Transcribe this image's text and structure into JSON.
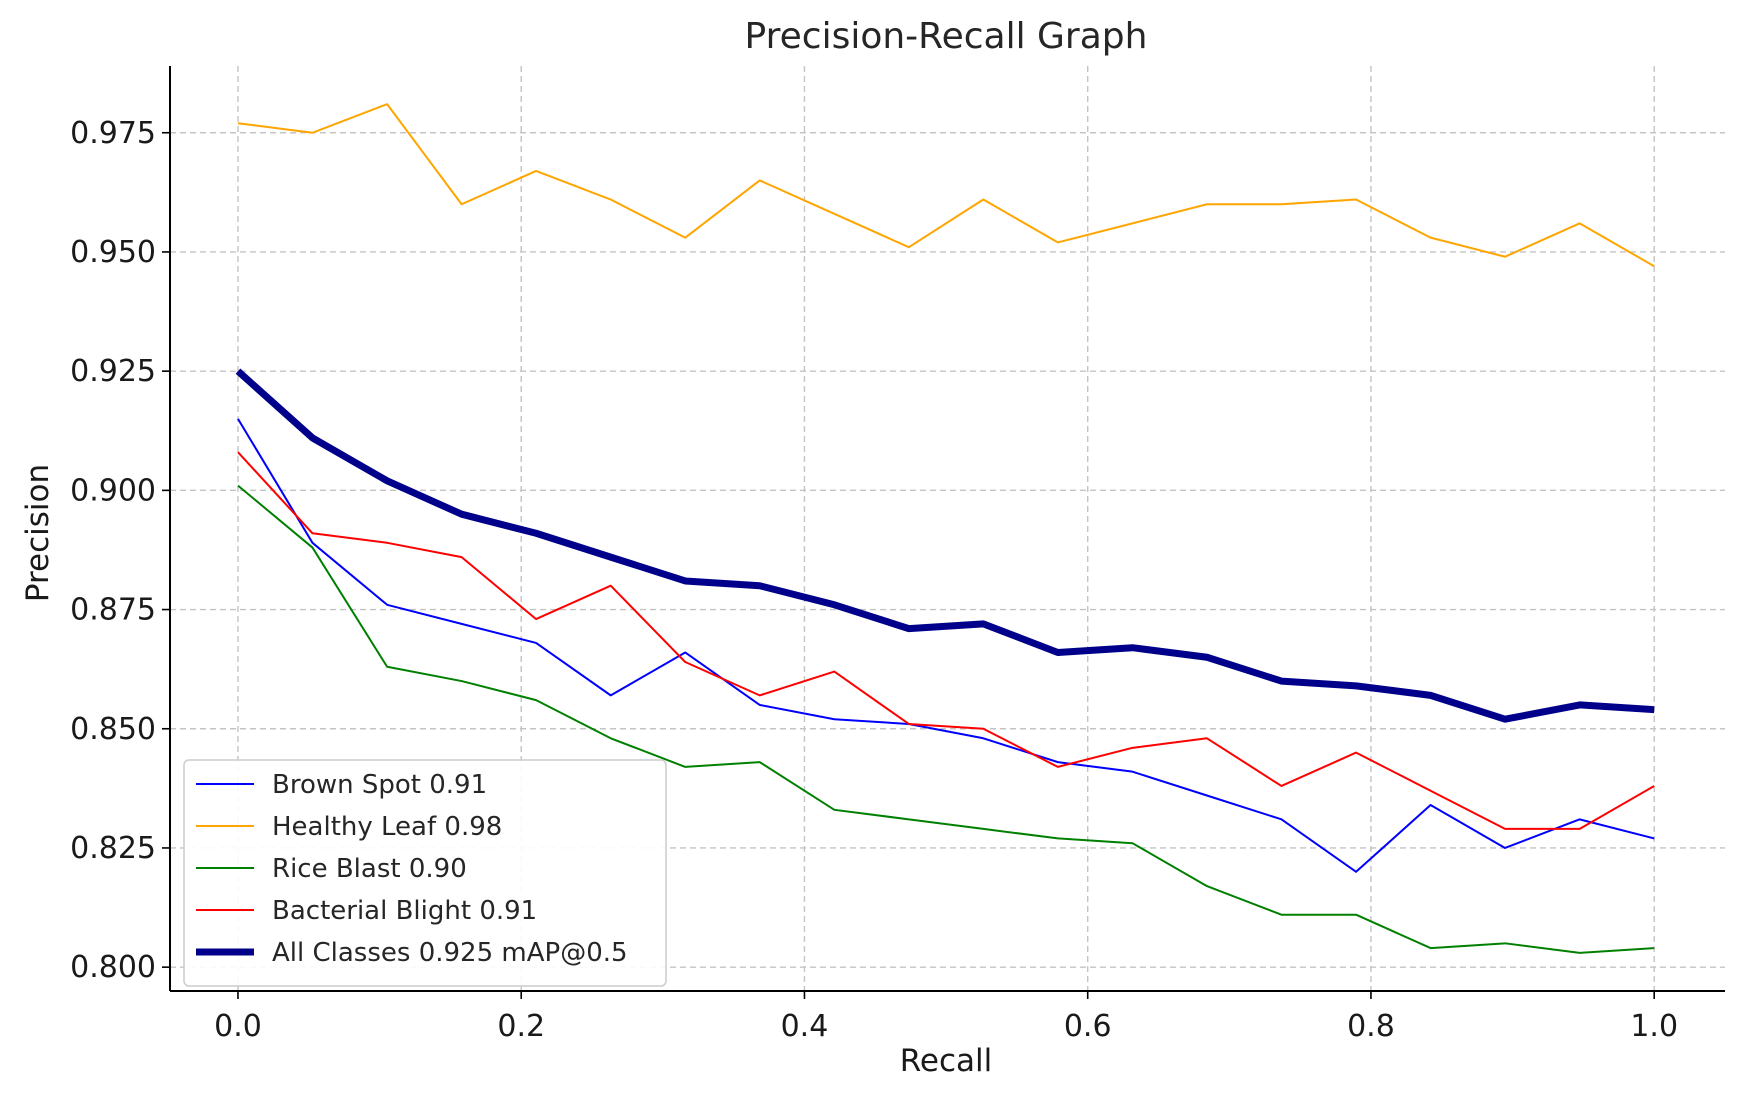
{
  "chart_data": {
    "type": "line",
    "title": "Precision-Recall Graph",
    "xlabel": "Recall",
    "ylabel": "Precision",
    "xlim": [
      -0.048,
      1.05
    ],
    "ylim": [
      0.795,
      0.989
    ],
    "xticks": [
      0.0,
      0.2,
      0.4,
      0.6,
      0.8,
      1.0
    ],
    "xtick_labels": [
      "0.0",
      "0.2",
      "0.4",
      "0.6",
      "0.8",
      "1.0"
    ],
    "yticks": [
      0.8,
      0.825,
      0.85,
      0.875,
      0.9,
      0.925,
      0.95,
      0.975
    ],
    "ytick_labels": [
      "0.800",
      "0.825",
      "0.850",
      "0.875",
      "0.900",
      "0.925",
      "0.950",
      "0.975"
    ],
    "grid": true,
    "legend_position": "bottom-left",
    "x": [
      0.0,
      0.0526,
      0.1053,
      0.1579,
      0.2105,
      0.2632,
      0.3158,
      0.3684,
      0.4211,
      0.4737,
      0.5263,
      0.5789,
      0.6316,
      0.6842,
      0.7368,
      0.7895,
      0.8421,
      0.8947,
      0.9474,
      1.0
    ],
    "series": [
      {
        "name": "Brown Spot 0.91",
        "color": "#0000ff",
        "width": 2,
        "values": [
          0.915,
          0.889,
          0.876,
          0.872,
          0.868,
          0.857,
          0.866,
          0.855,
          0.852,
          0.851,
          0.848,
          0.843,
          0.841,
          0.836,
          0.831,
          0.82,
          0.834,
          0.825,
          0.831,
          0.827
        ]
      },
      {
        "name": "Healthy Leaf 0.98",
        "color": "#ffa500",
        "width": 2,
        "values": [
          0.977,
          0.975,
          0.981,
          0.96,
          0.967,
          0.961,
          0.953,
          0.965,
          0.958,
          0.951,
          0.961,
          0.952,
          0.956,
          0.96,
          0.96,
          0.961,
          0.953,
          0.949,
          0.956,
          0.947
        ]
      },
      {
        "name": "Rice Blast 0.90",
        "color": "#008000",
        "width": 2,
        "values": [
          0.901,
          0.888,
          0.863,
          0.86,
          0.856,
          0.848,
          0.842,
          0.843,
          0.833,
          0.831,
          0.829,
          0.827,
          0.826,
          0.817,
          0.811,
          0.811,
          0.804,
          0.805,
          0.803,
          0.804
        ]
      },
      {
        "name": "Bacterial Blight 0.91",
        "color": "#ff0000",
        "width": 2,
        "values": [
          0.908,
          0.891,
          0.889,
          0.886,
          0.873,
          0.88,
          0.864,
          0.857,
          0.862,
          0.851,
          0.85,
          0.842,
          0.846,
          0.848,
          0.838,
          0.845,
          0.837,
          0.829,
          0.829,
          0.838
        ]
      },
      {
        "name": "All Classes 0.925 mAP@0.5",
        "color": "#00008b",
        "width": 7,
        "values": [
          0.925,
          0.911,
          0.902,
          0.895,
          0.891,
          0.886,
          0.881,
          0.88,
          0.876,
          0.871,
          0.872,
          0.866,
          0.867,
          0.865,
          0.86,
          0.859,
          0.857,
          0.852,
          0.855,
          0.854
        ]
      }
    ]
  }
}
